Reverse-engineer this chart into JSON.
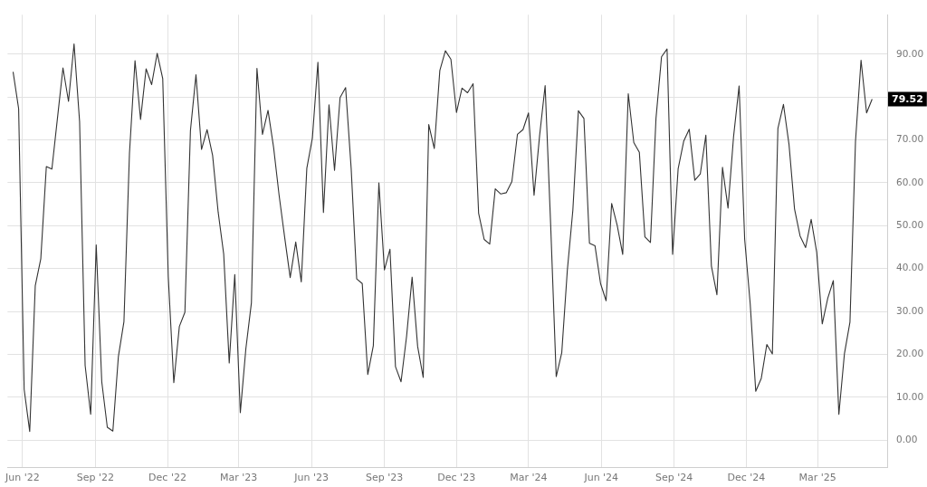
{
  "chart_data": {
    "type": "line",
    "color": "#333333",
    "marker": "none",
    "line_style": "solid",
    "grid": true,
    "x": [
      "2022-05-20",
      "2022-05-27",
      "2022-06-03",
      "2022-06-10",
      "2022-06-17",
      "2022-06-24",
      "2022-07-01",
      "2022-07-08",
      "2022-07-15",
      "2022-07-22",
      "2022-07-29",
      "2022-08-05",
      "2022-08-12",
      "2022-08-19",
      "2022-08-26",
      "2022-09-02",
      "2022-09-09",
      "2022-09-16",
      "2022-09-23",
      "2022-09-30",
      "2022-10-07",
      "2022-10-14",
      "2022-10-21",
      "2022-10-28",
      "2022-11-04",
      "2022-11-11",
      "2022-11-18",
      "2022-11-25",
      "2022-12-02",
      "2022-12-09",
      "2022-12-16",
      "2022-12-23",
      "2022-12-30",
      "2023-01-06",
      "2023-01-13",
      "2023-01-20",
      "2023-01-27",
      "2023-02-03",
      "2023-02-10",
      "2023-02-17",
      "2023-02-24",
      "2023-03-03",
      "2023-03-10",
      "2023-03-17",
      "2023-03-24",
      "2023-03-31",
      "2023-04-07",
      "2023-04-14",
      "2023-04-21",
      "2023-04-28",
      "2023-05-05",
      "2023-05-12",
      "2023-05-19",
      "2023-05-26",
      "2023-06-02",
      "2023-06-09",
      "2023-06-16",
      "2023-06-23",
      "2023-06-30",
      "2023-07-07",
      "2023-07-14",
      "2023-07-21",
      "2023-07-28",
      "2023-08-04",
      "2023-08-11",
      "2023-08-18",
      "2023-08-25",
      "2023-09-01",
      "2023-09-08",
      "2023-09-15",
      "2023-09-22",
      "2023-09-29",
      "2023-10-06",
      "2023-10-13",
      "2023-10-20",
      "2023-10-27",
      "2023-11-03",
      "2023-11-10",
      "2023-11-17",
      "2023-11-24",
      "2023-12-01",
      "2023-12-08",
      "2023-12-15",
      "2023-12-22",
      "2023-12-29",
      "2024-01-05",
      "2024-01-12",
      "2024-01-19",
      "2024-01-26",
      "2024-02-02",
      "2024-02-09",
      "2024-02-16",
      "2024-02-23",
      "2024-03-01",
      "2024-03-08",
      "2024-03-15",
      "2024-03-22",
      "2024-03-29",
      "2024-04-05",
      "2024-04-12",
      "2024-04-19",
      "2024-04-26",
      "2024-05-03",
      "2024-05-10",
      "2024-05-17",
      "2024-05-24",
      "2024-05-31",
      "2024-06-07",
      "2024-06-14",
      "2024-06-21",
      "2024-06-28",
      "2024-07-05",
      "2024-07-12",
      "2024-07-19",
      "2024-07-26",
      "2024-08-02",
      "2024-08-09",
      "2024-08-16",
      "2024-08-23",
      "2024-08-30",
      "2024-09-06",
      "2024-09-13",
      "2024-09-20",
      "2024-09-27",
      "2024-10-04",
      "2024-10-11",
      "2024-10-18",
      "2024-10-25",
      "2024-11-01",
      "2024-11-08",
      "2024-11-15",
      "2024-11-22",
      "2024-11-29",
      "2024-12-06",
      "2024-12-13",
      "2024-12-20",
      "2024-12-27",
      "2025-01-03",
      "2025-01-10",
      "2025-01-17",
      "2025-01-24",
      "2025-01-31",
      "2025-02-07",
      "2025-02-14",
      "2025-02-21",
      "2025-02-28",
      "2025-03-07",
      "2025-03-14",
      "2025-03-21",
      "2025-03-28",
      "2025-04-04",
      "2025-04-11",
      "2025-04-18",
      "2025-04-25",
      "2025-05-02",
      "2025-05-09"
    ],
    "values": [
      85.9,
      77.3,
      11.8,
      2.0,
      36.0,
      42.3,
      63.8,
      63.2,
      75.0,
      86.8,
      79.0,
      92.4,
      74.3,
      17.4,
      6.0,
      45.5,
      13.6,
      3.0,
      2.1,
      19.5,
      27.6,
      66.9,
      88.5,
      74.8,
      86.6,
      82.9,
      90.2,
      84.3,
      38.1,
      13.4,
      26.5,
      29.8,
      72.2,
      85.2,
      67.8,
      72.4,
      66.4,
      53.2,
      43.4,
      18.0,
      38.6,
      6.4,
      21.3,
      32.0,
      86.7,
      71.3,
      76.9,
      68.3,
      57.1,
      47.3,
      37.9,
      46.2,
      36.9,
      63.4,
      70.4,
      88.1,
      53.1,
      78.2,
      62.9,
      79.9,
      82.2,
      63.4,
      37.6,
      36.5,
      15.3,
      22.0,
      60.0,
      39.7,
      44.5,
      17.1,
      13.6,
      24.2,
      38.0,
      21.8,
      14.6,
      73.6,
      68.0,
      86.2,
      90.8,
      88.8,
      76.4,
      82.1,
      81.0,
      83.1,
      52.9,
      46.8,
      45.7,
      58.6,
      57.4,
      57.7,
      60.3,
      71.3,
      72.4,
      76.3,
      57.1,
      71.0,
      82.7,
      50.1,
      14.8,
      20.4,
      39.5,
      53.6,
      76.8,
      75.0,
      45.9,
      45.3,
      36.5,
      32.5,
      55.2,
      50.1,
      43.3,
      80.8,
      69.4,
      67.1,
      47.4,
      46.1,
      75.0,
      89.4,
      91.2,
      43.3,
      63.3,
      69.7,
      72.5,
      60.6,
      62.1,
      71.1,
      40.6,
      33.9,
      63.6,
      54.1,
      70.8,
      82.6,
      46.9,
      31.8,
      11.4,
      14.4,
      22.3,
      20.1,
      72.7,
      78.3,
      69.0,
      53.9,
      47.6,
      44.9,
      51.5,
      43.8,
      27.1,
      33.1,
      37.2,
      6.0,
      20.1,
      27.5,
      69.7,
      88.6,
      76.3,
      79.52
    ],
    "xlim": [
      "2022-05-13",
      "2025-05-28"
    ],
    "xticks": [
      {
        "value": "2022-06-01",
        "label": "Jun '22"
      },
      {
        "value": "2022-09-01",
        "label": "Sep '22"
      },
      {
        "value": "2022-12-01",
        "label": "Dec '22"
      },
      {
        "value": "2023-03-01",
        "label": "Mar '23"
      },
      {
        "value": "2023-06-01",
        "label": "Jun '23"
      },
      {
        "value": "2023-09-01",
        "label": "Sep '23"
      },
      {
        "value": "2023-12-01",
        "label": "Dec '23"
      },
      {
        "value": "2024-03-01",
        "label": "Mar '24"
      },
      {
        "value": "2024-06-01",
        "label": "Jun '24"
      },
      {
        "value": "2024-09-01",
        "label": "Sep '24"
      },
      {
        "value": "2024-12-01",
        "label": "Dec '24"
      },
      {
        "value": "2025-03-01",
        "label": "Mar '25"
      }
    ],
    "ylim": [
      -6.3,
      99.2
    ],
    "yticks": [
      {
        "value": 0,
        "label": "0.00"
      },
      {
        "value": 10,
        "label": "10.00"
      },
      {
        "value": 20,
        "label": "20.00"
      },
      {
        "value": 30,
        "label": "30.00"
      },
      {
        "value": 40,
        "label": "40.00"
      },
      {
        "value": 50,
        "label": "50.00"
      },
      {
        "value": 60,
        "label": "60.00"
      },
      {
        "value": 70,
        "label": "70.00"
      },
      {
        "value": 80,
        "label": null
      },
      {
        "value": 90,
        "label": "90.00"
      }
    ],
    "annotations": [
      {
        "text": "79.52",
        "x": "2025-05-09",
        "y": 79.52
      }
    ]
  }
}
